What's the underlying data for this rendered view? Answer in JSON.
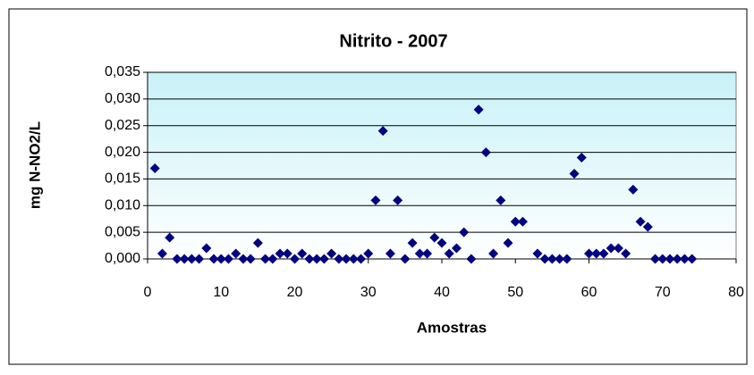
{
  "chart_data": {
    "type": "scatter",
    "title": "Nitrito - 2007",
    "x_label": "Amostras",
    "y_label": "mg N-NO2/L",
    "color": "#000080",
    "grid": true,
    "xlim": [
      0,
      80
    ],
    "xticks": [
      0,
      10,
      20,
      30,
      40,
      50,
      60,
      70,
      80
    ],
    "ylim": [
      0,
      0.035
    ],
    "yticks": [
      {
        "value": 0,
        "label": "0,000"
      },
      {
        "value": 0.005,
        "label": "0,005"
      },
      {
        "value": 0.01,
        "label": "0,010"
      },
      {
        "value": 0.015,
        "label": "0,015"
      },
      {
        "value": 0.02,
        "label": "0,020"
      },
      {
        "value": 0.025,
        "label": "0,025"
      },
      {
        "value": 0.03,
        "label": "0,030"
      },
      {
        "value": 0.035,
        "label": "0,035"
      }
    ],
    "x": [
      1,
      2,
      3,
      4,
      5,
      6,
      7,
      8,
      9,
      10,
      11,
      12,
      13,
      14,
      15,
      16,
      17,
      18,
      19,
      20,
      21,
      22,
      23,
      24,
      25,
      26,
      27,
      28,
      29,
      30,
      31,
      32,
      33,
      34,
      35,
      36,
      37,
      38,
      39,
      40,
      41,
      42,
      43,
      44,
      45,
      46,
      47,
      48,
      49,
      50,
      51,
      53,
      54,
      55,
      56,
      57,
      58,
      59,
      60,
      61,
      62,
      63,
      64,
      65,
      66,
      67,
      68,
      69,
      70,
      71,
      72,
      73,
      74
    ],
    "values": [
      0.017,
      0.001,
      0.004,
      0,
      0,
      0,
      0,
      0.002,
      0,
      0,
      0,
      0.001,
      0,
      0,
      0.003,
      0,
      0,
      0.001,
      0.001,
      0,
      0.001,
      0,
      0,
      0,
      0.001,
      0,
      0,
      0,
      0,
      0.001,
      0.011,
      0.024,
      0.001,
      0.011,
      0,
      0.003,
      0.001,
      0.001,
      0.004,
      0.003,
      0.001,
      0.002,
      0.005,
      0,
      0.028,
      0.02,
      0.001,
      0.011,
      0.003,
      0.007,
      0.007,
      0.001,
      0,
      0,
      0,
      0,
      0.016,
      0.019,
      0.001,
      0.001,
      0.001,
      0.002,
      0.002,
      0.001,
      0.013,
      0.007,
      0.006,
      0,
      0,
      0,
      0,
      0,
      0
    ]
  }
}
